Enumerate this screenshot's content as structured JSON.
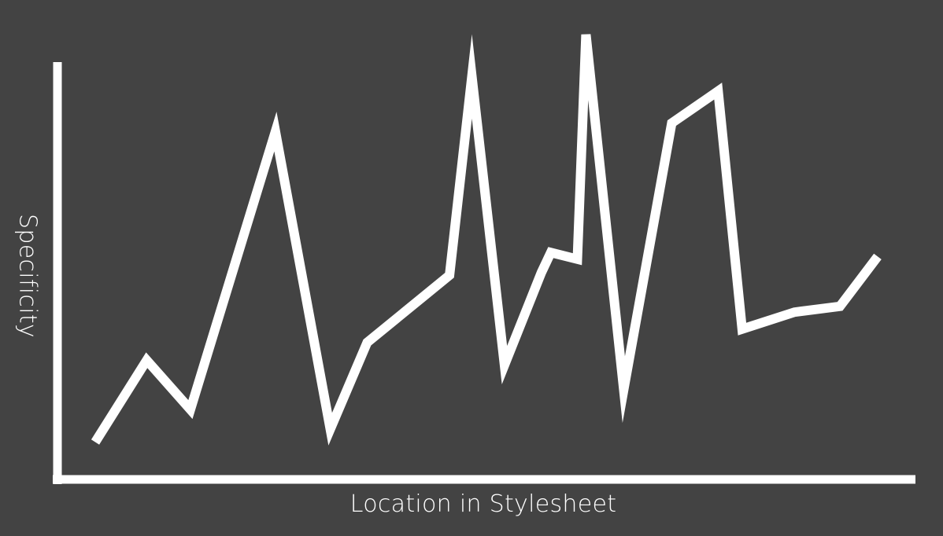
{
  "colors": {
    "background": "#434343",
    "foreground": "#ffffff"
  },
  "chart_data": {
    "type": "line",
    "title": "",
    "xlabel": "Location in Stylesheet",
    "ylabel": "Specificity",
    "grid": false,
    "legend": "none",
    "x_ticks": false,
    "y_ticks": false,
    "series": [
      {
        "x": [
          4.4,
          10.4,
          15.5,
          25.4,
          31.8,
          36.1,
          45.7,
          48.3,
          52.1,
          56.4,
          57.5,
          60.6,
          61.6,
          66.0,
          71.6,
          77.0,
          79.8,
          85.9,
          91.2,
          95.6
        ],
        "values": [
          8.4,
          26.8,
          15.7,
          78.2,
          11.3,
          30.8,
          45.9,
          90.6,
          25.7,
          46.5,
          51.0,
          49.5,
          100.0,
          20.2,
          80.1,
          87.3,
          33.8,
          37.6,
          38.9,
          50.1
        ]
      }
    ]
  }
}
